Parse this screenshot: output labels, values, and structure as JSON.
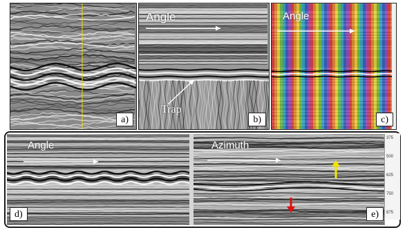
{
  "panels": {
    "a": {
      "label": "a)"
    },
    "b": {
      "label": "b)",
      "title": "Angle",
      "annotation": "Trap"
    },
    "c": {
      "label": "c)",
      "title": "Angle"
    },
    "d": {
      "label": "d)",
      "title": "Angle"
    },
    "e": {
      "label": "e)",
      "title": "Azimuth",
      "axis_ticks": [
        "375",
        "500",
        "625",
        "750",
        "875"
      ]
    }
  },
  "colors": {
    "arrow_up": "#f2e600",
    "arrow_down": "#e01010",
    "vertical_line": "#e8e000"
  }
}
